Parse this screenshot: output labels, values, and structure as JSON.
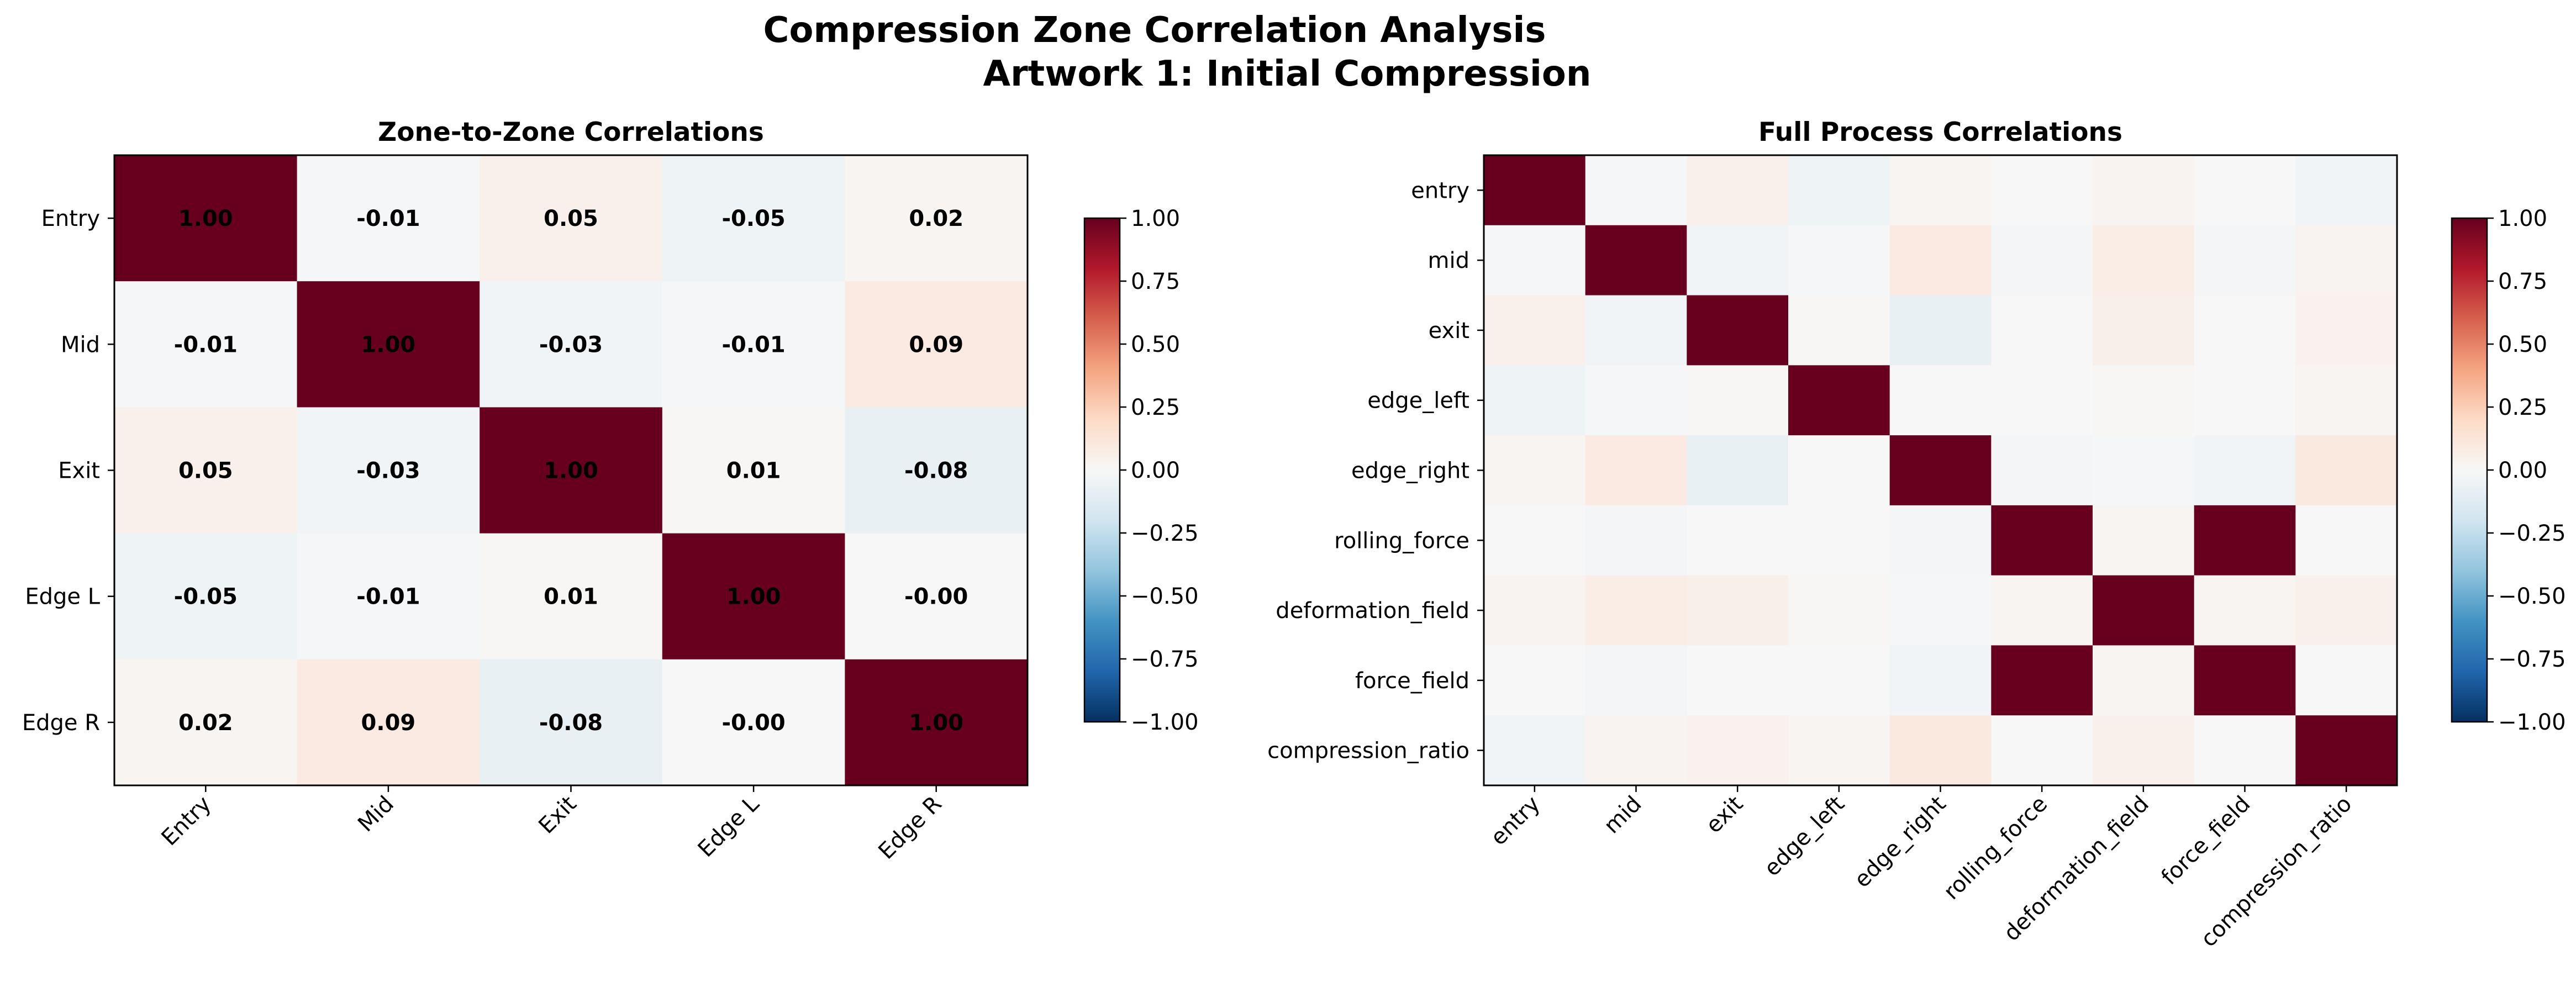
{
  "figure": {
    "title_line1": "Compression Zone Correlation Analysis",
    "title_line2": "Artwork 1: Initial Compression"
  },
  "colormap": {
    "name": "RdBu_r",
    "stops": [
      "#053061",
      "#2166ac",
      "#4393c3",
      "#92c5de",
      "#d1e5f0",
      "#f7f7f7",
      "#fddbc7",
      "#f4a582",
      "#d6604d",
      "#b2182b",
      "#67001f"
    ]
  },
  "chart_data": [
    {
      "type": "heatmap",
      "title": "Zone-to-Zone Correlations",
      "labels": [
        "Entry",
        "Mid",
        "Exit",
        "Edge L",
        "Edge R"
      ],
      "values": [
        [
          1.0,
          -0.01,
          0.05,
          -0.05,
          0.02
        ],
        [
          -0.01,
          1.0,
          -0.03,
          -0.01,
          0.09
        ],
        [
          0.05,
          -0.03,
          1.0,
          0.01,
          -0.08
        ],
        [
          -0.05,
          -0.01,
          0.01,
          1.0,
          -0.0
        ],
        [
          0.02,
          0.09,
          -0.08,
          -0.0,
          1.0
        ]
      ],
      "annotation_text": [
        [
          "1.00",
          "-0.01",
          "0.05",
          "-0.05",
          "0.02"
        ],
        [
          "-0.01",
          "1.00",
          "-0.03",
          "-0.01",
          "0.09"
        ],
        [
          "0.05",
          "-0.03",
          "1.00",
          "0.01",
          "-0.08"
        ],
        [
          "-0.05",
          "-0.01",
          "0.01",
          "1.00",
          "-0.00"
        ],
        [
          "0.02",
          "0.09",
          "-0.08",
          "-0.00",
          "1.00"
        ]
      ],
      "vmin": -1.0,
      "vmax": 1.0,
      "colorbar_ticks": [
        "1.00",
        "0.75",
        "0.50",
        "0.25",
        "0.00",
        "−0.25",
        "−0.50",
        "−0.75",
        "−1.00"
      ],
      "colorbar_tick_values": [
        1.0,
        0.75,
        0.5,
        0.25,
        0.0,
        -0.25,
        -0.5,
        -0.75,
        -1.0
      ]
    },
    {
      "type": "heatmap",
      "title": "Full Process Correlations",
      "labels": [
        "entry",
        "mid",
        "exit",
        "edge_left",
        "edge_right",
        "rolling_force",
        "deformation_field",
        "force_field",
        "compression_ratio"
      ],
      "values": [
        [
          1.0,
          -0.01,
          0.05,
          -0.05,
          0.02,
          0.0,
          0.03,
          0.0,
          -0.03
        ],
        [
          -0.01,
          1.0,
          -0.03,
          -0.01,
          0.09,
          -0.02,
          0.07,
          -0.02,
          0.03
        ],
        [
          0.05,
          -0.03,
          1.0,
          0.01,
          -0.08,
          0.0,
          0.06,
          0.0,
          0.04
        ],
        [
          -0.05,
          -0.01,
          0.01,
          1.0,
          -0.0,
          0.0,
          0.01,
          0.0,
          0.02
        ],
        [
          0.02,
          0.09,
          -0.08,
          -0.0,
          1.0,
          -0.02,
          -0.01,
          -0.03,
          0.1
        ],
        [
          0.0,
          -0.02,
          0.0,
          0.0,
          -0.02,
          1.0,
          0.02,
          1.0,
          0.0
        ],
        [
          0.03,
          0.07,
          0.06,
          0.01,
          -0.01,
          0.02,
          1.0,
          0.02,
          0.05
        ],
        [
          0.0,
          -0.02,
          0.0,
          0.0,
          -0.03,
          1.0,
          0.02,
          1.0,
          0.0
        ],
        [
          -0.03,
          0.03,
          0.04,
          0.02,
          0.1,
          0.0,
          0.05,
          0.0,
          1.0
        ]
      ],
      "vmin": -1.0,
      "vmax": 1.0,
      "colorbar_ticks": [
        "1.00",
        "0.75",
        "0.50",
        "0.25",
        "0.00",
        "−0.25",
        "−0.50",
        "−0.75",
        "−1.00"
      ],
      "colorbar_tick_values": [
        1.0,
        0.75,
        0.5,
        0.25,
        0.0,
        -0.25,
        -0.5,
        -0.75,
        -1.0
      ]
    }
  ]
}
